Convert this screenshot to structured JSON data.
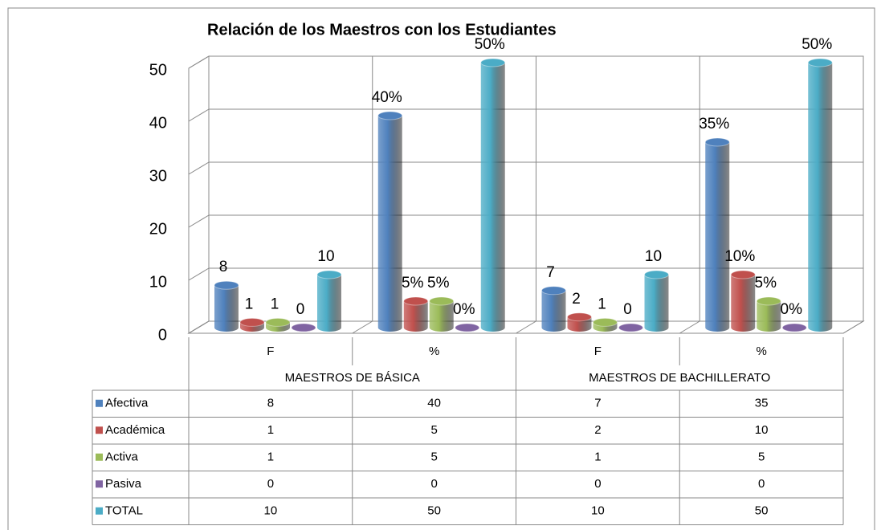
{
  "chart_data": {
    "type": "bar",
    "title": "Relación de los Maestros con los Estudiantes",
    "categories": [
      "F",
      "%",
      "F",
      "%"
    ],
    "category_groups": [
      "MAESTROS DE BÁSICA",
      "MAESTROS DE BACHILLERATO"
    ],
    "series": [
      {
        "name": "Afectiva",
        "color": "#4f81bd",
        "values": [
          8,
          40,
          7,
          35
        ],
        "value_labels": [
          "8",
          "40%",
          "7",
          "35%"
        ]
      },
      {
        "name": "Académica",
        "color": "#c0504d",
        "values": [
          1,
          5,
          2,
          10
        ],
        "value_labels": [
          "1",
          "5%",
          "2",
          "10%"
        ]
      },
      {
        "name": "Activa",
        "color": "#9bbb59",
        "values": [
          1,
          5,
          1,
          5
        ],
        "value_labels": [
          "1",
          "5%",
          "1",
          "5%"
        ]
      },
      {
        "name": "Pasiva",
        "color": "#8064a2",
        "values": [
          0,
          0,
          0,
          0
        ],
        "value_labels": [
          "0",
          "0%",
          "0",
          "0%"
        ]
      },
      {
        "name": "TOTAL",
        "color": "#4bacc6",
        "values": [
          10,
          50,
          10,
          50
        ],
        "value_labels": [
          "10",
          "50%",
          "10",
          "50%"
        ]
      }
    ],
    "ylim": [
      0,
      50
    ],
    "yticks": [
      0,
      10,
      20,
      30,
      40,
      50
    ],
    "grid": true,
    "data_table": true
  }
}
